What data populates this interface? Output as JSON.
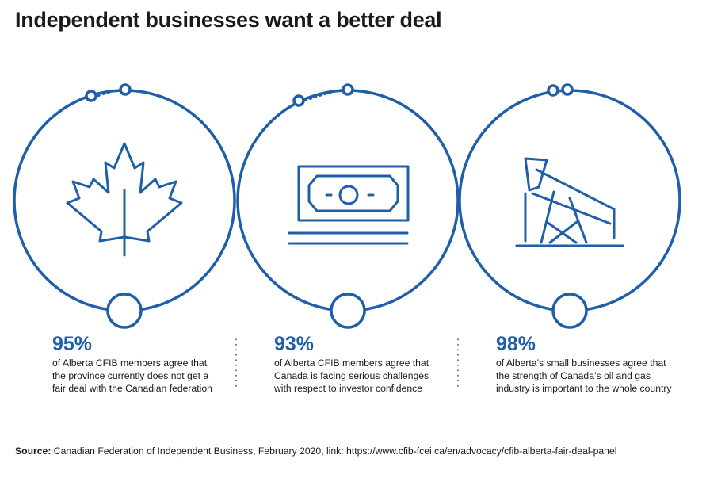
{
  "header": {
    "title": "Independent businesses want a better deal"
  },
  "accent_color": "#1f5fa8",
  "stats": [
    {
      "icon": "maple-leaf-icon",
      "percent": "95%",
      "lines": [
        "of Alberta CFIB members agree that",
        "the province currently does not get a",
        "fair deal with the Canadian federation"
      ]
    },
    {
      "icon": "banknote-icon",
      "percent": "93%",
      "lines": [
        "of Alberta CFIB members agree that",
        "Canada is facing serious challenges",
        "with respect to investor confidence"
      ]
    },
    {
      "icon": "oil-pumpjack-icon",
      "percent": "98%",
      "lines": [
        "of Alberta’s small businesses agree that",
        "the strength of Canada’s oil and gas",
        "industry is important to the whole country"
      ]
    }
  ],
  "footer": {
    "source_label": "Source:",
    "source_text": "Canadian Federation of Independent Business, February 2020, link: https://www.cfib-fcei.ca/en/advocacy/cfib-alberta-fair-deal-panel"
  }
}
